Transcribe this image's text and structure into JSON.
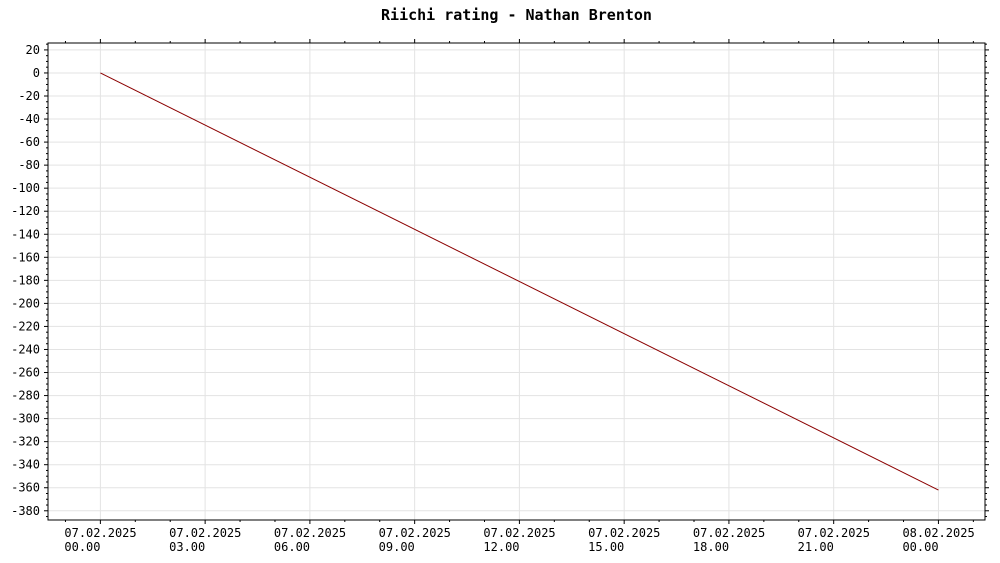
{
  "chart_data": {
    "type": "line",
    "title": "Riichi rating - Nathan Brenton",
    "xlabel": "",
    "ylabel": "",
    "x_ticks": [
      {
        "date": "07.02.2025",
        "time": "00.00"
      },
      {
        "date": "07.02.2025",
        "time": "03.00"
      },
      {
        "date": "07.02.2025",
        "time": "06.00"
      },
      {
        "date": "07.02.2025",
        "time": "09.00"
      },
      {
        "date": "07.02.2025",
        "time": "12.00"
      },
      {
        "date": "07.02.2025",
        "time": "15.00"
      },
      {
        "date": "07.02.2025",
        "time": "18.00"
      },
      {
        "date": "07.02.2025",
        "time": "21.00"
      },
      {
        "date": "08.02.2025",
        "time": "00.00"
      }
    ],
    "y_ticks": [
      20,
      0,
      -20,
      -40,
      -60,
      -80,
      -100,
      -120,
      -140,
      -160,
      -180,
      -200,
      -220,
      -240,
      -260,
      -280,
      -300,
      -320,
      -340,
      -360,
      -380
    ],
    "xlim": [
      "06.02.2025 22.30",
      "08.02.2025 01.20"
    ],
    "ylim": [
      -388,
      26
    ],
    "grid": true,
    "series": [
      {
        "color": "#8b0000",
        "points": [
          {
            "x": "07.02.2025 00.00",
            "y": 0
          },
          {
            "x": "08.02.2025 00.00",
            "y": -362
          }
        ]
      }
    ]
  }
}
